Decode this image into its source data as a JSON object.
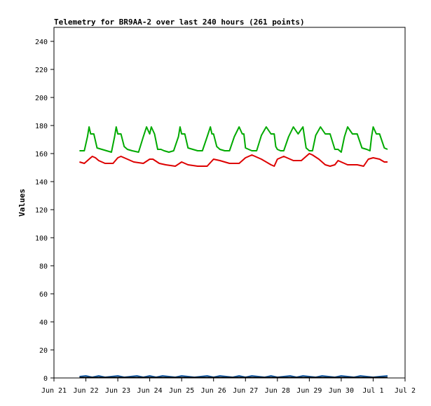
{
  "chart_data": {
    "type": "line",
    "title": "Telemetry for BR9AA-2 over last 240 hours (261 points)",
    "xlabel": "",
    "ylabel": "Values",
    "xlim": [
      "Jun 21",
      "Jul 2"
    ],
    "ylim": [
      0,
      250
    ],
    "x_ticks": [
      "Jun 21",
      "Jun 22",
      "Jun 23",
      "Jun 24",
      "Jun 25",
      "Jun 26",
      "Jun 27",
      "Jun 28",
      "Jun 29",
      "Jun 30",
      "Jul 1",
      "Jul 2"
    ],
    "y_ticks": [
      0,
      20,
      40,
      60,
      80,
      100,
      120,
      140,
      160,
      180,
      200,
      220,
      240
    ],
    "grid": false,
    "legend": "none",
    "series": [
      {
        "color": "#00aa00",
        "x": [
          21.8,
          21.95,
          22.05,
          22.1,
          22.15,
          22.25,
          22.35,
          22.5,
          22.65,
          22.8,
          22.9,
          22.95,
          23.0,
          23.1,
          23.2,
          23.3,
          23.45,
          23.65,
          23.8,
          23.9,
          24.0,
          24.05,
          24.15,
          24.25,
          24.35,
          24.45,
          24.6,
          24.75,
          24.9,
          24.95,
          25.0,
          25.1,
          25.2,
          25.35,
          25.5,
          25.65,
          25.8,
          25.9,
          25.95,
          26.0,
          26.1,
          26.2,
          26.35,
          26.5,
          26.65,
          26.8,
          26.9,
          26.95,
          27.0,
          27.1,
          27.2,
          27.35,
          27.5,
          27.65,
          27.8,
          27.9,
          27.95,
          28.0,
          28.1,
          28.2,
          28.35,
          28.5,
          28.65,
          28.8,
          28.9,
          28.95,
          29.0,
          29.1,
          29.2,
          29.35,
          29.5,
          29.65,
          29.8,
          29.9,
          29.95,
          30.0,
          30.1,
          30.2,
          30.35,
          30.5,
          30.65,
          30.8,
          30.9,
          30.95,
          31.0,
          31.1,
          31.2,
          31.35,
          31.45
        ],
        "values": [
          162,
          162,
          172,
          179,
          174,
          174,
          164,
          163,
          162,
          161,
          172,
          179,
          174,
          174,
          165,
          163,
          162,
          161,
          172,
          179,
          174,
          179,
          174,
          163,
          163,
          162,
          161,
          162,
          172,
          179,
          174,
          174,
          164,
          163,
          162,
          162,
          172,
          179,
          174,
          174,
          165,
          163,
          162,
          162,
          172,
          179,
          174,
          174,
          164,
          163,
          162,
          162,
          173,
          179,
          174,
          174,
          165,
          163,
          162,
          162,
          172,
          179,
          174,
          179,
          164,
          163,
          162,
          162,
          173,
          179,
          174,
          174,
          163,
          163,
          162,
          161,
          172,
          179,
          174,
          174,
          164,
          163,
          162,
          172,
          179,
          174,
          174,
          164,
          163
        ]
      },
      {
        "color": "#dd0000",
        "x": [
          21.8,
          21.95,
          22.1,
          22.2,
          22.3,
          22.4,
          22.6,
          22.85,
          23.0,
          23.1,
          23.2,
          23.3,
          23.5,
          23.8,
          24.0,
          24.1,
          24.3,
          24.5,
          24.8,
          25.0,
          25.2,
          25.5,
          25.8,
          26.0,
          26.2,
          26.5,
          26.8,
          27.0,
          27.2,
          27.5,
          27.8,
          27.9,
          28.0,
          28.2,
          28.5,
          28.75,
          28.9,
          29.0,
          29.1,
          29.3,
          29.5,
          29.65,
          29.8,
          29.9,
          30.0,
          30.2,
          30.5,
          30.7,
          30.85,
          31.0,
          31.2,
          31.35,
          31.45
        ],
        "values": [
          154,
          153,
          156,
          158,
          157,
          155,
          153,
          153,
          157,
          158,
          157,
          156,
          154,
          153,
          156,
          156,
          153,
          152,
          151,
          154,
          152,
          151,
          151,
          156,
          155,
          153,
          153,
          157,
          159,
          156,
          152,
          151,
          156,
          158,
          155,
          155,
          158,
          160,
          159,
          156,
          152,
          151,
          152,
          155,
          154,
          152,
          152,
          151,
          156,
          157,
          156,
          154,
          154
        ]
      },
      {
        "color": "#1a5fa8",
        "x": [
          21.8,
          22.0,
          22.2,
          22.4,
          22.6,
          22.8,
          23.0,
          23.2,
          23.4,
          23.6,
          23.8,
          24.0,
          24.2,
          24.4,
          24.6,
          24.8,
          25.0,
          25.2,
          25.4,
          25.6,
          25.8,
          26.0,
          26.2,
          26.4,
          26.6,
          26.8,
          27.0,
          27.2,
          27.4,
          27.6,
          27.8,
          28.0,
          28.2,
          28.4,
          28.6,
          28.8,
          29.0,
          29.2,
          29.4,
          29.6,
          29.8,
          30.0,
          30.2,
          30.4,
          30.6,
          30.8,
          31.0,
          31.2,
          31.45
        ],
        "values": [
          1,
          1.5,
          0.5,
          1.5,
          0.5,
          1,
          1.5,
          0.5,
          1,
          1.5,
          0.5,
          1.5,
          0.5,
          1.5,
          1,
          0.5,
          1.5,
          1,
          0.5,
          1,
          1.5,
          0.5,
          1.5,
          1,
          0.5,
          1.5,
          0.5,
          1.5,
          1,
          0.5,
          1.5,
          0.5,
          1,
          1.5,
          0.5,
          1.5,
          1,
          0.5,
          1.5,
          1,
          0.5,
          1.5,
          1,
          0.5,
          1.5,
          1,
          0.5,
          1,
          1.5
        ]
      },
      {
        "color": "#000000",
        "x": [
          21.8,
          31.45
        ],
        "values": [
          0.3,
          0.3
        ]
      }
    ]
  }
}
